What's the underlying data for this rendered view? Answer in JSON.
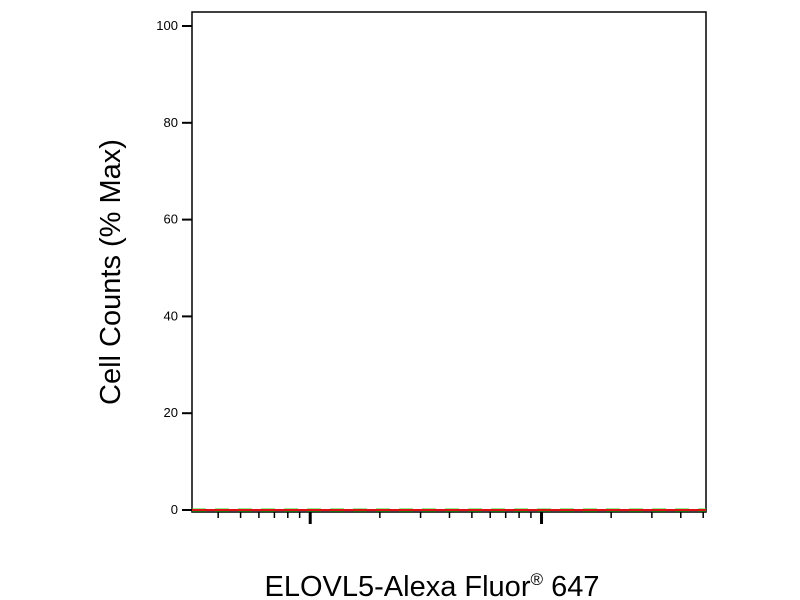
{
  "chart_data": {
    "type": "line",
    "title": "",
    "xlabel_main": "ELOVL5-Alexa Fluor",
    "xlabel_sup": "®",
    "xlabel_tail": " 647",
    "ylabel": "Cell Counts (% Max)",
    "x_scale": "log",
    "ylim": [
      0,
      100
    ],
    "yticks": [
      "0",
      "20",
      "40",
      "60",
      "80",
      "100"
    ],
    "grid": false,
    "series": [
      {
        "color": "#33dd33",
        "dash": "dashed",
        "x": [
          0,
          0.05,
          0.1,
          0.14,
          0.18,
          0.22,
          0.26,
          0.3,
          0.33,
          0.35,
          0.37,
          0.38,
          0.4,
          0.42,
          0.44,
          0.47,
          0.52,
          0.56,
          0.6,
          0.64,
          0.68,
          0.72,
          0.74,
          0.77,
          0.8,
          0.83,
          0.86,
          0.88,
          0.9,
          0.92,
          0.95,
          1.0
        ],
        "y": [
          0,
          0,
          0,
          0,
          0,
          0,
          0,
          0,
          0,
          0,
          0,
          0,
          0,
          0,
          0,
          0,
          0,
          0,
          0,
          0,
          0,
          0,
          0,
          0,
          0,
          0,
          0,
          0,
          0,
          0,
          0,
          0
        ]
      },
      {
        "color": "#dd1111",
        "dash": "solid",
        "x": [
          0,
          0.05,
          0.1,
          0.14,
          0.18,
          0.22,
          0.26,
          0.3,
          0.33,
          0.35,
          0.37,
          0.38,
          0.4,
          0.42,
          0.44,
          0.47,
          0.52,
          0.56,
          0.6,
          0.64,
          0.68,
          0.72,
          0.74,
          0.77,
          0.8,
          0.83,
          0.86,
          0.88,
          0.9,
          0.92,
          0.95,
          1.0
        ],
        "y": [
          0,
          0,
          0,
          0,
          0,
          0,
          0,
          0,
          0,
          0,
          0,
          0,
          0,
          0,
          0,
          0,
          0,
          0,
          0,
          0,
          0,
          0,
          0,
          0,
          0,
          0,
          0,
          0,
          0,
          0,
          0,
          0
        ]
      }
    ]
  }
}
